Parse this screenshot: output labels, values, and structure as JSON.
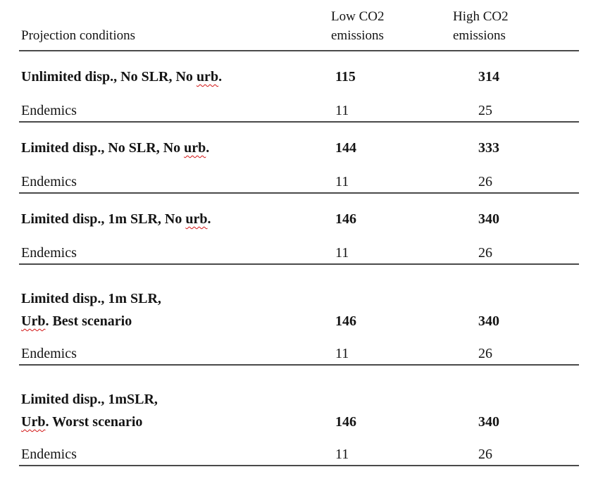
{
  "colors": {
    "text": "#141414",
    "rule": "#4a4a4a",
    "spellcheck_underline": "#d21414",
    "background": "#ffffff"
  },
  "header": {
    "col1": "Projection conditions",
    "col2": [
      "Low CO2",
      "emissions"
    ],
    "col3": [
      "High CO2",
      "emissions"
    ]
  },
  "sections": [
    {
      "title_lines": [
        [
          {
            "t": "Unlimited disp., No SLR, No "
          },
          {
            "t": "urb",
            "wavy": true
          },
          {
            "t": "."
          }
        ]
      ],
      "low": "115",
      "high": "314",
      "endemics": {
        "label": "Endemics",
        "low": "11",
        "high": "25"
      },
      "extra_gap": false
    },
    {
      "title_lines": [
        [
          {
            "t": "Limited disp., No SLR, No "
          },
          {
            "t": "urb",
            "wavy": true
          },
          {
            "t": "."
          }
        ]
      ],
      "low": "144",
      "high": "333",
      "endemics": {
        "label": "Endemics",
        "low": "11",
        "high": "26"
      },
      "extra_gap": false
    },
    {
      "title_lines": [
        [
          {
            "t": "Limited disp., 1m SLR, No "
          },
          {
            "t": "urb",
            "wavy": true
          },
          {
            "t": "."
          }
        ]
      ],
      "low": "146",
      "high": "340",
      "endemics": {
        "label": "Endemics",
        "low": "11",
        "high": "26"
      },
      "extra_gap": false
    },
    {
      "title_lines": [
        [
          {
            "t": "Limited disp., 1m SLR,"
          }
        ],
        [
          {
            "t": "Urb",
            "wavy": true
          },
          {
            "t": ". Best scenario"
          }
        ]
      ],
      "low": "146",
      "high": "340",
      "endemics": {
        "label": "Endemics",
        "low": "11",
        "high": "26"
      },
      "extra_gap": true
    },
    {
      "title_lines": [
        [
          {
            "t": "Limited disp., 1mSLR,"
          }
        ],
        [
          {
            "t": "Urb",
            "wavy": true
          },
          {
            "t": ". Worst scenario"
          }
        ]
      ],
      "low": "146",
      "high": "340",
      "endemics": {
        "label": "Endemics",
        "low": "11",
        "high": "26"
      },
      "extra_gap": true
    }
  ]
}
